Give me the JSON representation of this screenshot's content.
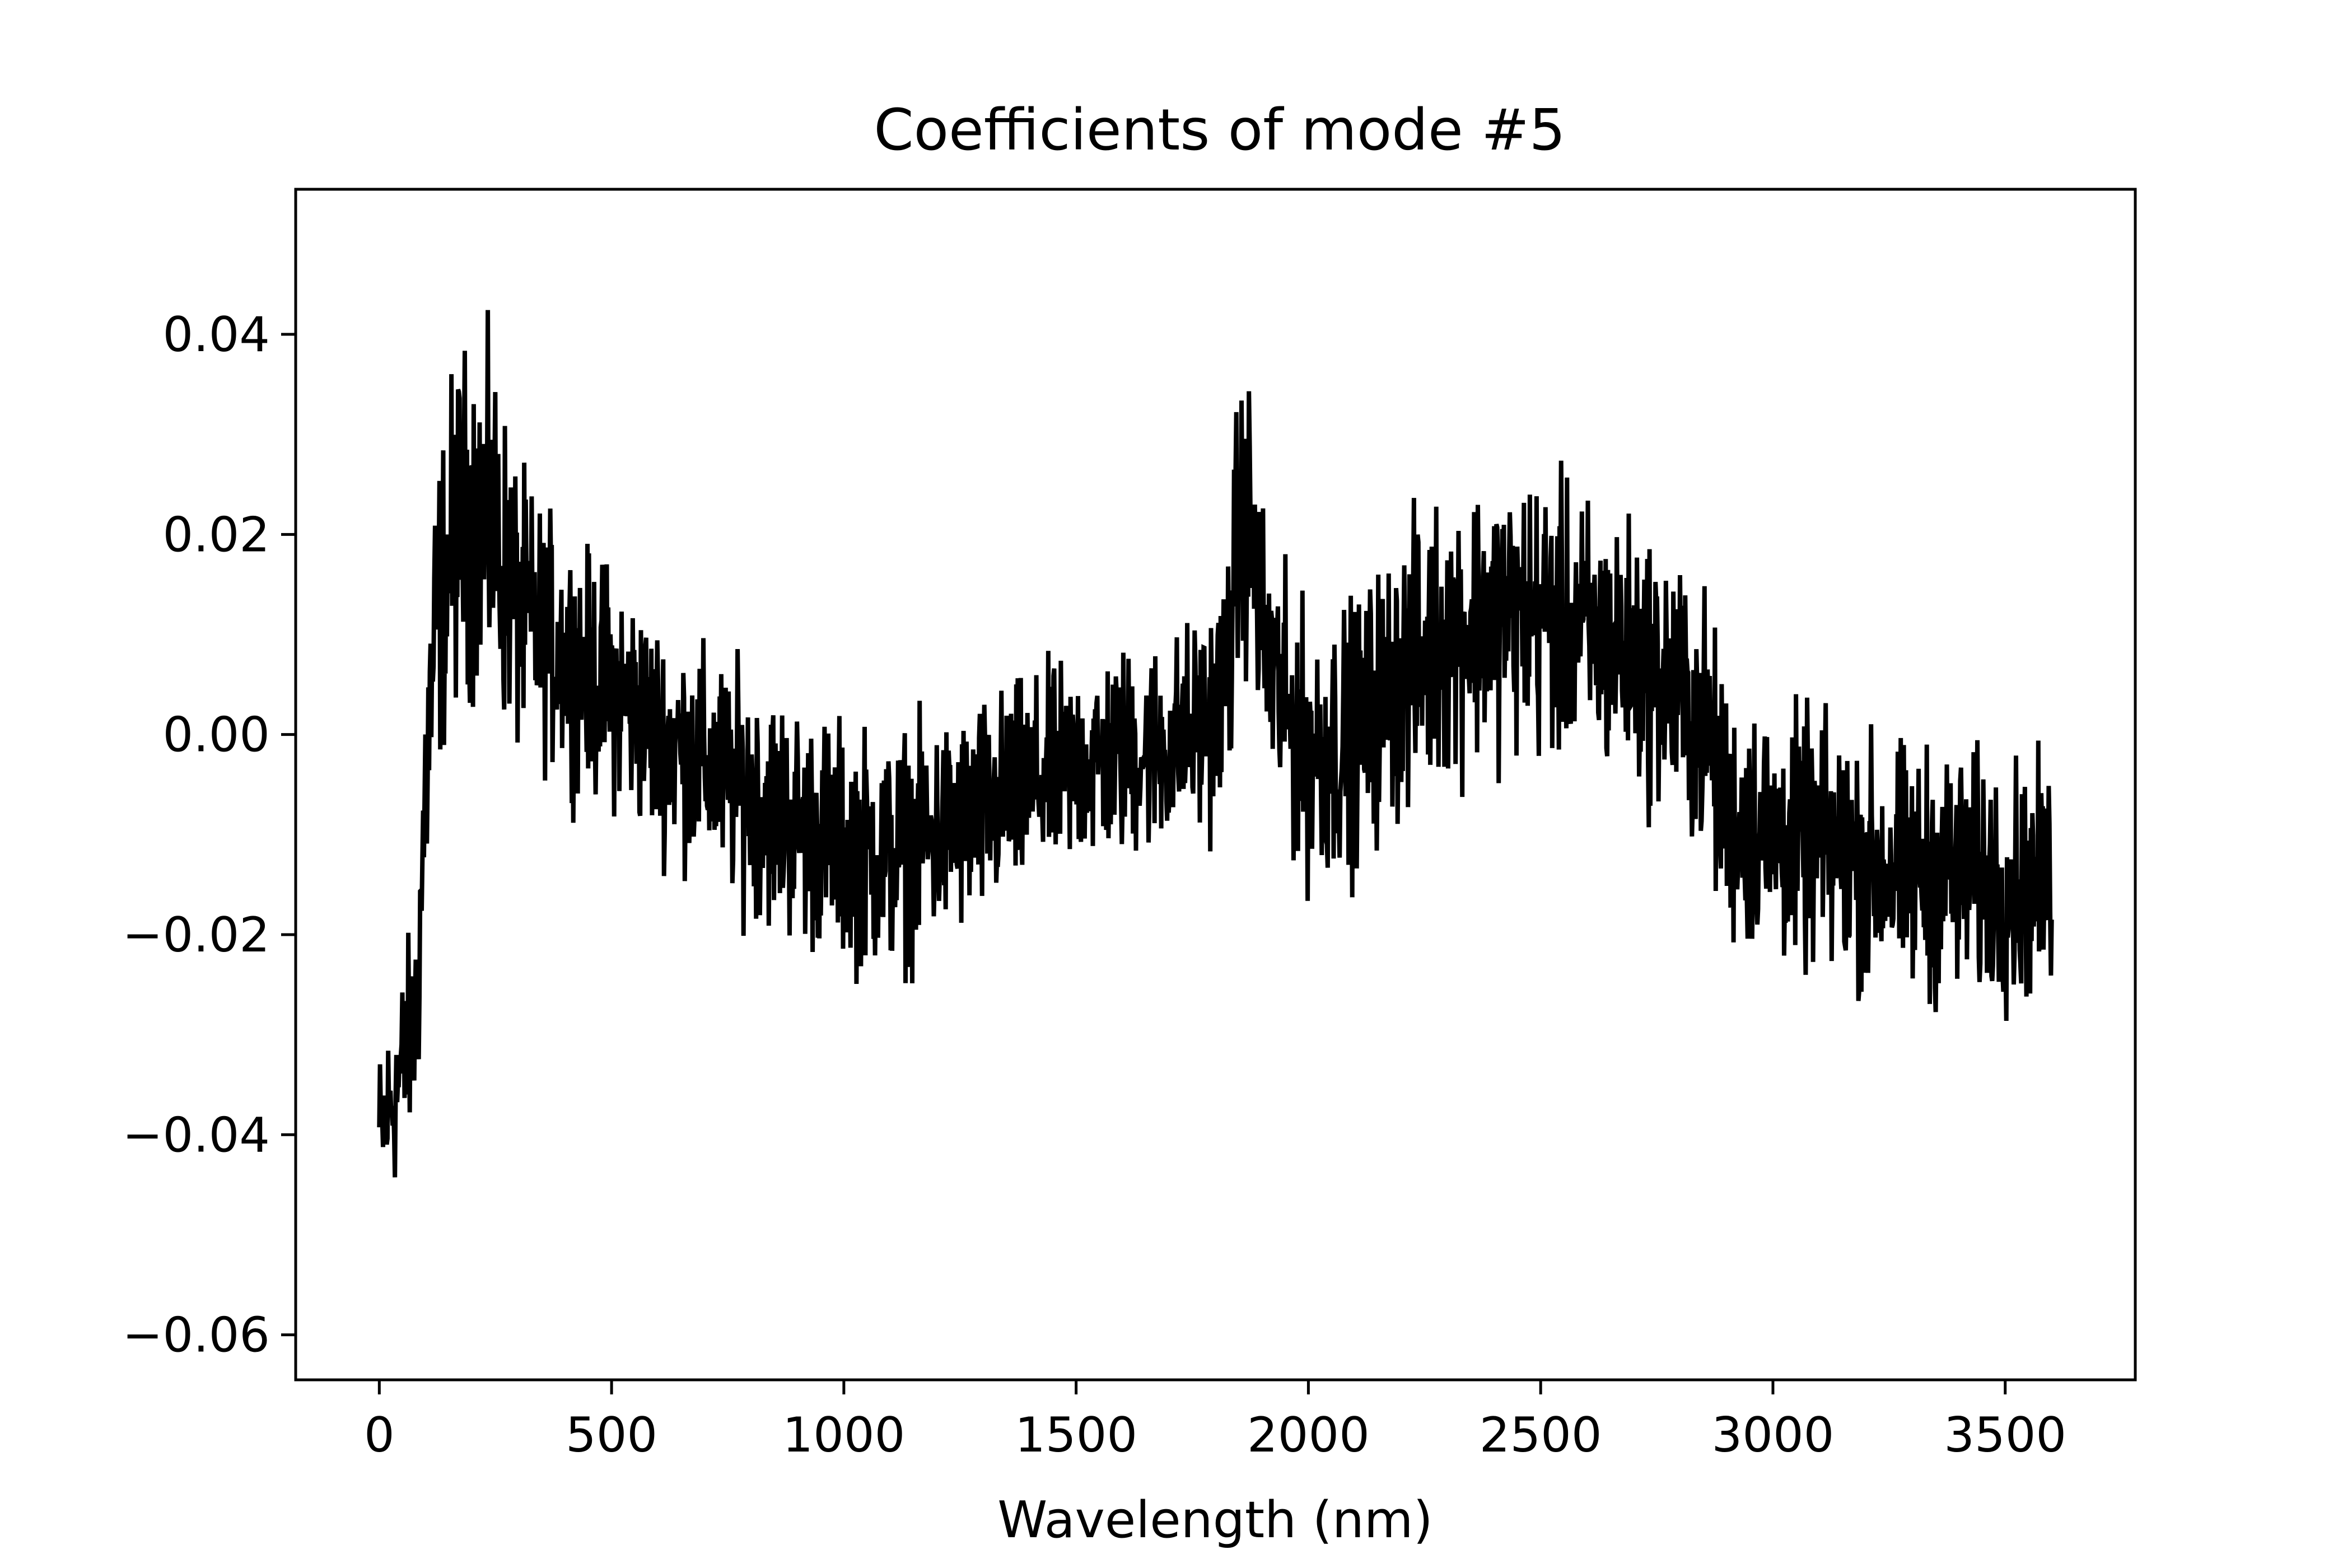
{
  "chart_data": {
    "type": "line",
    "title": "Coefficients of mode #5",
    "xlabel": "Wavelength (nm)",
    "ylabel": "",
    "xlim": [
      -180,
      3780
    ],
    "ylim": [
      -0.0645,
      0.0545
    ],
    "x_ticks": [
      {
        "value": 0,
        "label": "0"
      },
      {
        "value": 500,
        "label": "500"
      },
      {
        "value": 1000,
        "label": "1000"
      },
      {
        "value": 1500,
        "label": "1500"
      },
      {
        "value": 2000,
        "label": "2000"
      },
      {
        "value": 2500,
        "label": "2500"
      },
      {
        "value": 3000,
        "label": "3000"
      },
      {
        "value": 3500,
        "label": "3500"
      }
    ],
    "y_ticks": [
      {
        "value": -0.06,
        "label": "−0.06"
      },
      {
        "value": -0.04,
        "label": "−0.04"
      },
      {
        "value": -0.02,
        "label": "−0.02"
      },
      {
        "value": 0.0,
        "label": "0.00"
      },
      {
        "value": 0.02,
        "label": "0.02"
      },
      {
        "value": 0.04,
        "label": "0.04"
      }
    ],
    "grid": false,
    "line_color": "#000000",
    "series": [
      {
        "x": [
          0,
          40,
          80,
          100,
          120,
          160,
          200,
          250,
          300,
          350,
          400,
          450,
          500,
          600,
          700,
          800,
          900,
          1000,
          1100,
          1200,
          1300,
          1400,
          1500,
          1600,
          1700,
          1800,
          1830,
          1850,
          1870,
          1900,
          1950,
          2000,
          2100,
          2200,
          2300,
          2400,
          2500,
          2600,
          2700,
          2800,
          2860,
          2900,
          3000,
          3100,
          3200,
          3300,
          3400,
          3500,
          3600
        ],
        "y": [
          -0.04,
          -0.035,
          -0.028,
          -0.005,
          0.01,
          0.02,
          0.022,
          0.02,
          0.012,
          0.01,
          0.008,
          0.006,
          0.005,
          0.0,
          -0.003,
          -0.006,
          -0.009,
          -0.011,
          -0.012,
          -0.01,
          -0.008,
          -0.005,
          -0.003,
          -0.002,
          -0.001,
          0.002,
          0.008,
          0.02,
          0.022,
          0.01,
          0.002,
          -0.002,
          0.0,
          0.006,
          0.01,
          0.012,
          0.012,
          0.01,
          0.008,
          0.004,
          0.0,
          -0.008,
          -0.01,
          -0.011,
          -0.013,
          -0.014,
          -0.014,
          -0.015,
          -0.015
        ],
        "noise_amplitude": [
          0.012,
          0.014,
          0.016,
          0.02,
          0.022,
          0.024,
          0.025,
          0.024,
          0.02,
          0.018,
          0.017,
          0.017,
          0.017,
          0.016,
          0.016,
          0.017,
          0.017,
          0.017,
          0.017,
          0.016,
          0.016,
          0.015,
          0.015,
          0.015,
          0.015,
          0.016,
          0.018,
          0.022,
          0.02,
          0.019,
          0.019,
          0.019,
          0.019,
          0.02,
          0.02,
          0.02,
          0.02,
          0.019,
          0.019,
          0.019,
          0.019,
          0.018,
          0.018,
          0.018,
          0.018,
          0.018,
          0.018,
          0.017,
          0.017
        ]
      }
    ]
  }
}
